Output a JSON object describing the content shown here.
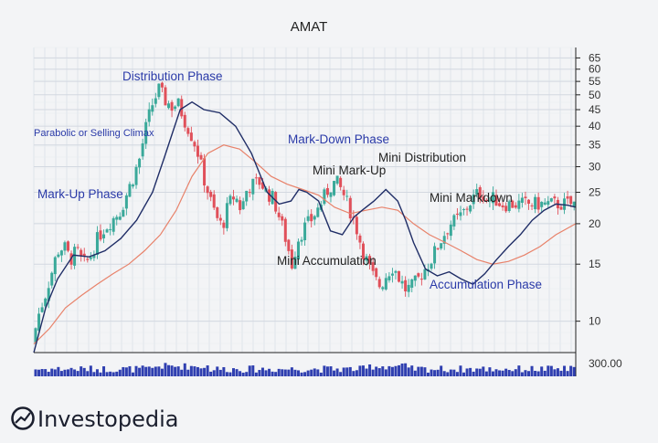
{
  "chart_data": {
    "type": "candlestick",
    "title": "AMAT",
    "y_scale": "log",
    "ylim": [
      8,
      70
    ],
    "y_ticks": [
      10,
      15,
      20,
      25,
      30,
      35,
      40,
      45,
      50,
      55,
      60,
      65
    ],
    "volume_tick_label": "300.00",
    "series": [
      {
        "name": "price",
        "x": [
          0,
          8,
          16,
          24,
          32,
          40,
          48,
          56,
          64,
          72,
          80,
          88,
          96,
          104,
          112,
          120,
          128,
          136,
          144,
          152,
          160,
          168,
          176,
          184,
          192,
          200,
          208,
          216,
          224,
          232,
          240,
          248,
          256,
          264,
          272,
          280,
          288,
          296,
          304,
          312,
          320,
          328,
          336,
          344,
          352,
          360,
          368,
          376,
          384,
          392,
          400,
          408,
          416,
          424,
          432,
          440,
          448,
          456,
          464,
          472,
          480,
          488,
          496,
          504,
          512,
          520,
          528,
          536,
          544,
          552,
          560,
          568,
          576,
          584,
          592
        ],
        "values": [
          8.5,
          10.5,
          12,
          14,
          16.5,
          17,
          15.5,
          16.5,
          15,
          15.5,
          17.5,
          19,
          20,
          21,
          22,
          25,
          28,
          32,
          40,
          47,
          52,
          48,
          46,
          47,
          42,
          38,
          34,
          28,
          24,
          21,
          19.5,
          23,
          24.5,
          22,
          26,
          26.5,
          27,
          25,
          24,
          21,
          18,
          15,
          18,
          19.5,
          20.5,
          22,
          24,
          26,
          27,
          25,
          22.5,
          20,
          17,
          15,
          13.5,
          12.8,
          14,
          14.8,
          13.5,
          12.5,
          12.8,
          13.5,
          14.5,
          15.5,
          17,
          18.5,
          20,
          20.5,
          21.5,
          23,
          24.5,
          25,
          23.5,
          24,
          23
        ]
      },
      {
        "name": "fast_ma",
        "x": [
          0,
          15,
          30,
          50,
          70,
          90,
          110,
          130,
          150,
          165,
          175,
          185,
          200,
          215,
          235,
          255,
          275,
          295,
          310,
          325,
          335,
          345,
          360,
          375,
          390,
          405,
          415,
          430,
          445,
          460,
          470,
          480,
          495,
          510,
          525,
          540,
          555,
          570,
          585,
          600,
          615,
          630,
          645,
          660,
          675,
          685
        ],
        "values": [
          8,
          11,
          13.5,
          16,
          15.8,
          16.5,
          18,
          20.5,
          25,
          32,
          38,
          45,
          47.5,
          45,
          44,
          40,
          33,
          25,
          23,
          23.5,
          25.5,
          25,
          23.5,
          19,
          18.5,
          21,
          22,
          23.5,
          25.5,
          23.5,
          20.5,
          17.5,
          14.5,
          13.8,
          14.2,
          13.5,
          13,
          14,
          15.5,
          17,
          18.5,
          20.5,
          22,
          23,
          22.8,
          22.5
        ]
      },
      {
        "name": "slow_ma",
        "x": [
          0,
          20,
          40,
          60,
          80,
          100,
          120,
          140,
          160,
          180,
          200,
          220,
          240,
          260,
          280,
          300,
          320,
          340,
          360,
          380,
          400,
          420,
          440,
          460,
          480,
          500,
          520,
          540,
          560,
          580,
          600,
          620,
          640,
          660,
          685
        ],
        "values": [
          8.5,
          9.5,
          11,
          12,
          13,
          14,
          15,
          16.5,
          18.5,
          22,
          28,
          33,
          35,
          34,
          31,
          28,
          26.5,
          25.5,
          24.5,
          22.5,
          21.5,
          22,
          22.5,
          22,
          20,
          18.5,
          17.5,
          16.5,
          15.5,
          15,
          15.3,
          16,
          17,
          18.5,
          20
        ]
      }
    ],
    "annotations": [
      "Distribution Phase",
      "Parabolic or Selling Climax",
      "Mark-Up Phase",
      "Mark-Down Phase",
      "Mini Mark-Up",
      "Mini Distribution",
      "Mini Markdown",
      "Mini Accumulation",
      "Accumulation Phase"
    ],
    "colors": {
      "bull": "#3aa99a",
      "bear": "#e0505a",
      "fast_ma": "#1f2d66",
      "slow_ma": "#e8826a",
      "volume": "#2f3fb0"
    }
  },
  "logo": {
    "text": "Investopedia"
  }
}
